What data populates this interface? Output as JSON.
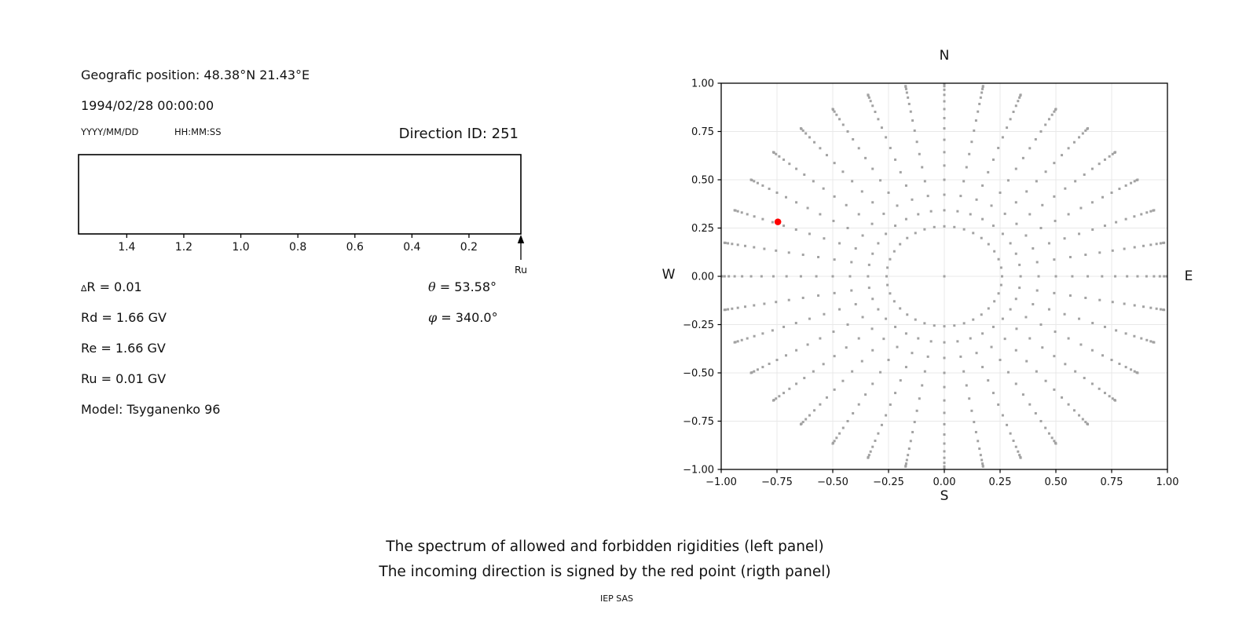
{
  "header": {
    "position": "Geografic position: 48.38°N 21.43°E",
    "datetime": "1994/02/28 00:00:00",
    "date_format": "YYYY/MM/DD",
    "time_format": "HH:MM:SS",
    "direction_id": "Direction ID: 251"
  },
  "parameters": {
    "delta_symbol": "∆",
    "delta_rest": "R = 0.01",
    "rd": "Rd = 1.66 GV",
    "re": "Re = 1.66 GV",
    "ru": "Ru = 0.01 GV",
    "model": "Model: Tsyganenko 96",
    "theta_symbol": "θ",
    "theta_rest": " = 53.58°",
    "phi_symbol": "φ",
    "phi_rest": " = 340.0°"
  },
  "captions": {
    "line1": "The spectrum of allowed and forbidden rigidities (left panel)",
    "line2": "The incoming direction is signed by the red point (rigth panel)",
    "credit": "IEP SAS"
  },
  "chart_data": [
    {
      "id": "rigidity-spectrum",
      "type": "bar",
      "title": "",
      "xlim": [
        1.569,
        0.018
      ],
      "xticks": [
        1.4,
        1.2,
        1.0,
        0.8,
        0.6,
        0.4,
        0.2
      ],
      "xtick_labels": [
        "1.4",
        "1.2",
        "1.0",
        "0.8",
        "0.6",
        "0.4",
        "0.2"
      ],
      "bands": [],
      "arrow": {
        "label": "Ru",
        "x": 0.01
      },
      "box_color": "#000000"
    },
    {
      "id": "incoming-direction-map",
      "type": "scatter",
      "title": "",
      "compass": {
        "top": "N",
        "bottom": "S",
        "left": "W",
        "right": "E"
      },
      "xlim": [
        -1.0,
        1.0
      ],
      "ylim": [
        -1.0,
        1.0
      ],
      "xticks": [
        -1.0,
        -0.75,
        -0.5,
        -0.25,
        0.0,
        0.25,
        0.5,
        0.75,
        1.0
      ],
      "xtick_labels": [
        "−1.00",
        "−0.75",
        "−0.50",
        "−0.25",
        "0.00",
        "0.25",
        "0.50",
        "0.75",
        "1.00"
      ],
      "yticks": [
        -1.0,
        -0.75,
        -0.5,
        -0.25,
        0.0,
        0.25,
        0.5,
        0.75,
        1.0
      ],
      "ytick_labels": [
        "−1.00",
        "−0.75",
        "−0.50",
        "−0.25",
        "0.00",
        "0.25",
        "0.50",
        "0.75",
        "1.00"
      ],
      "grid": true,
      "grid_color": "#e8e8e8",
      "series": [
        {
          "name": "direction-grid",
          "marker": "square",
          "marker_size_px": 3,
          "color": "#a2a2a2",
          "azimuths_deg": [
            0,
            10,
            20,
            30,
            40,
            50,
            60,
            70,
            80,
            90,
            100,
            110,
            120,
            130,
            140,
            150,
            160,
            170,
            180,
            190,
            200,
            210,
            220,
            230,
            240,
            250,
            260,
            270,
            280,
            290,
            300,
            310,
            320,
            330,
            340,
            350
          ],
          "spoke_radii": [
            0.2588,
            0.342,
            0.4226,
            0.5,
            0.5736,
            0.6428,
            0.7071,
            0.766,
            0.8192,
            0.866,
            0.9063,
            0.9397,
            0.9659,
            0.9848,
            0.9962,
            1.0
          ],
          "center_point": [
            0.0,
            0.0
          ]
        },
        {
          "name": "incoming-direction",
          "marker": "circle",
          "marker_size_px": 8.6,
          "color": "#ff0000",
          "points": [
            [
              -0.746,
              0.282
            ]
          ]
        }
      ]
    }
  ]
}
